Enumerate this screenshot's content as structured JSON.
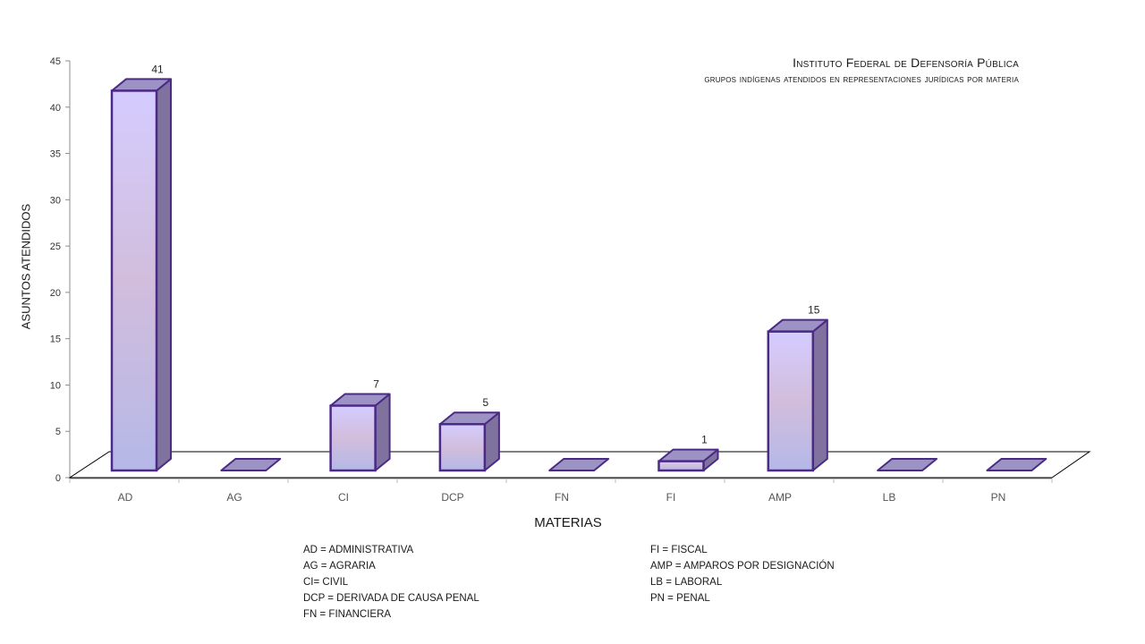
{
  "title": "Instituto Federal de Defensoría Pública",
  "subtitle": "grupos indígenas atendidos en representaciones jurídicas por materia",
  "chart_data": {
    "type": "bar",
    "categories": [
      "AD",
      "AG",
      "CI",
      "DCP",
      "FN",
      "FI",
      "AMP",
      "LB",
      "PN"
    ],
    "values": [
      41,
      0,
      7,
      5,
      0,
      1,
      15,
      0,
      0
    ],
    "data_labels": [
      "41",
      "",
      "7",
      "5",
      "",
      "1",
      "15",
      "",
      ""
    ],
    "xlabel": "MATERIAS",
    "ylabel": "ASUNTOS ATENDIDOS",
    "ylim": [
      0,
      45
    ],
    "yticks": [
      0,
      5,
      10,
      15,
      20,
      25,
      30,
      35,
      40,
      45
    ],
    "style": "3d-column",
    "grid": false,
    "colors": {
      "bar_top": "#d4ccff",
      "bar_mid": "#d2bddc",
      "bar_bottom": "#b5b8e8",
      "bar_side": "#7f729e",
      "bar_cap": "#9c93c4",
      "bar_outline": "#4b2a86"
    }
  },
  "legend": {
    "col1": [
      "AD = ADMINISTRATIVA",
      "AG = AGRARIA",
      "CI= CIVIL",
      "DCP = DERIVADA DE CAUSA PENAL",
      "FN = FINANCIERA"
    ],
    "col2": [
      "FI = FISCAL",
      "AMP = AMPAROS POR DESIGNACIÓN",
      "LB = LABORAL",
      "PN = PENAL"
    ]
  }
}
